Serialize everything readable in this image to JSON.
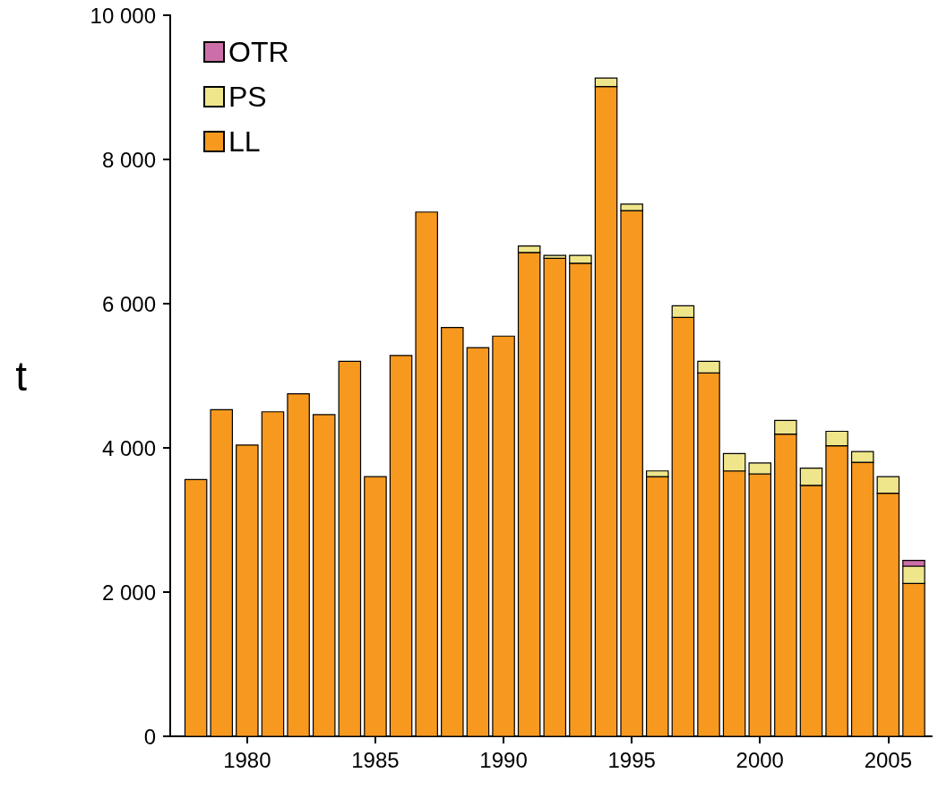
{
  "chart_data": {
    "type": "bar",
    "stacked": true,
    "ylabel": "t",
    "x": [
      1978,
      1979,
      1980,
      1981,
      1982,
      1983,
      1984,
      1985,
      1986,
      1987,
      1988,
      1989,
      1990,
      1991,
      1992,
      1993,
      1994,
      1995,
      1996,
      1997,
      1998,
      1999,
      2000,
      2001,
      2002,
      2003,
      2004,
      2005,
      2006
    ],
    "series": [
      {
        "name": "LL",
        "color": "#f7991e",
        "values": [
          3560,
          4530,
          4040,
          4500,
          4750,
          4460,
          5200,
          3600,
          5280,
          7270,
          5670,
          5390,
          5550,
          6710,
          6630,
          6560,
          9010,
          7290,
          3600,
          5810,
          5040,
          3680,
          3640,
          4190,
          3480,
          4030,
          3800,
          3370,
          2120
        ]
      },
      {
        "name": "PS",
        "color": "#efe68c",
        "values": [
          0,
          0,
          0,
          0,
          0,
          0,
          0,
          0,
          0,
          0,
          0,
          0,
          0,
          90,
          40,
          110,
          120,
          90,
          80,
          160,
          160,
          240,
          150,
          190,
          240,
          200,
          150,
          230,
          240
        ]
      },
      {
        "name": "OTR",
        "color": "#cc6fa8",
        "values": [
          0,
          0,
          0,
          0,
          0,
          0,
          0,
          0,
          0,
          0,
          0,
          0,
          0,
          0,
          0,
          0,
          0,
          0,
          0,
          0,
          0,
          0,
          0,
          0,
          0,
          0,
          0,
          0,
          80
        ]
      }
    ],
    "xlim": [
      1977,
      2006.7
    ],
    "xticks": [
      1980,
      1985,
      1990,
      1995,
      2000,
      2005
    ],
    "ylim": [
      0,
      10000
    ],
    "yticks": [
      0,
      {
        "value": 2000,
        "label": "2 000"
      },
      {
        "value": 4000,
        "label": "4 000"
      },
      {
        "value": 6000,
        "label": "6 000"
      },
      {
        "value": 8000,
        "label": "8 000"
      },
      {
        "value": 10000,
        "label": "10 000"
      }
    ],
    "grid": false,
    "legend": "top left"
  }
}
